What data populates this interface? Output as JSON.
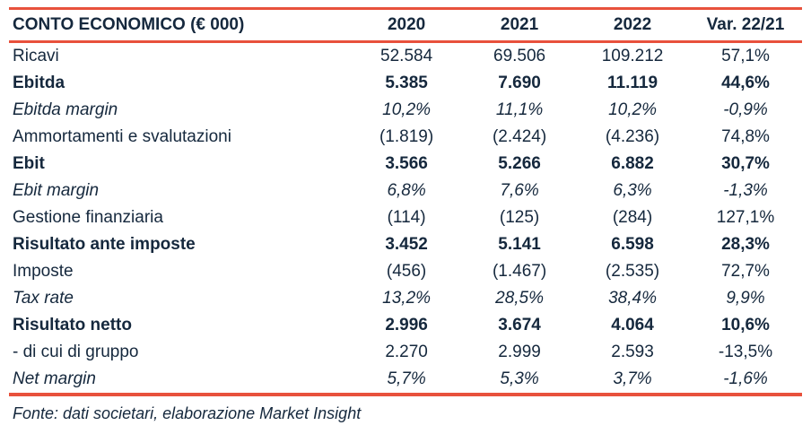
{
  "colors": {
    "accent": "#e8513c",
    "text": "#15283d"
  },
  "table": {
    "header": {
      "label": "CONTO ECONOMICO (€ 000)",
      "columns": [
        "2020",
        "2021",
        "2022",
        "Var. 22/21"
      ]
    },
    "rows": [
      {
        "label": "Ricavi",
        "style": "normal",
        "values": [
          "52.584",
          "69.506",
          "109.212",
          "57,1%"
        ]
      },
      {
        "label": "Ebitda",
        "style": "bold",
        "values": [
          "5.385",
          "7.690",
          "11.119",
          "44,6%"
        ]
      },
      {
        "label": "Ebitda margin",
        "style": "italic",
        "values": [
          "10,2%",
          "11,1%",
          "10,2%",
          "-0,9%"
        ]
      },
      {
        "label": "Ammortamenti e svalutazioni",
        "style": "normal",
        "values": [
          "(1.819)",
          "(2.424)",
          "(4.236)",
          "74,8%"
        ]
      },
      {
        "label": "Ebit",
        "style": "bold",
        "values": [
          "3.566",
          "5.266",
          "6.882",
          "30,7%"
        ]
      },
      {
        "label": "Ebit margin",
        "style": "italic",
        "values": [
          "6,8%",
          "7,6%",
          "6,3%",
          "-1,3%"
        ]
      },
      {
        "label": "Gestione finanziaria",
        "style": "normal",
        "values": [
          "(114)",
          "(125)",
          "(284)",
          "127,1%"
        ]
      },
      {
        "label": "Risultato ante imposte",
        "style": "bold",
        "values": [
          "3.452",
          "5.141",
          "6.598",
          "28,3%"
        ]
      },
      {
        "label": "Imposte",
        "style": "normal",
        "values": [
          "(456)",
          "(1.467)",
          "(2.535)",
          "72,7%"
        ]
      },
      {
        "label": "Tax rate",
        "style": "italic",
        "values": [
          "13,2%",
          "28,5%",
          "38,4%",
          "9,9%"
        ]
      },
      {
        "label": "Risultato netto",
        "style": "bold",
        "values": [
          "2.996",
          "3.674",
          "4.064",
          "10,6%"
        ]
      },
      {
        "label": "- di cui di gruppo",
        "style": "normal",
        "values": [
          "2.270",
          "2.999",
          "2.593",
          "-13,5%"
        ]
      },
      {
        "label": "Net margin",
        "style": "italic",
        "values": [
          "5,7%",
          "5,3%",
          "3,7%",
          "-1,6%"
        ]
      }
    ],
    "footer": "Fonte: dati societari, elaborazione Market Insight"
  }
}
